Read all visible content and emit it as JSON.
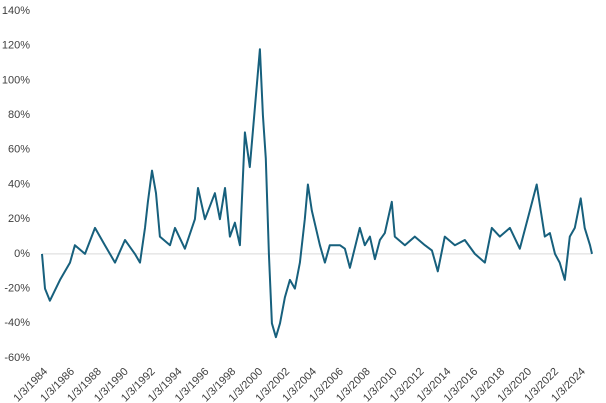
{
  "chart_data": {
    "type": "line",
    "x": [
      1984.0,
      1984.22,
      1984.59,
      1985.34,
      1986.08,
      1986.45,
      1987.2,
      1987.94,
      1988.68,
      1989.43,
      1990.17,
      1990.91,
      1991.29,
      1991.66,
      1991.88,
      1992.18,
      1992.48,
      1992.77,
      1993.52,
      1993.89,
      1994.63,
      1995.37,
      1995.6,
      1996.12,
      1996.86,
      1997.23,
      1997.61,
      1997.98,
      1998.35,
      1998.72,
      1999.09,
      1999.46,
      1999.84,
      2000.21,
      2000.43,
      2000.65,
      2000.88,
      2001.1,
      2001.4,
      2001.7,
      2002.07,
      2002.44,
      2002.81,
      2003.18,
      2003.55,
      2003.78,
      2004.07,
      2004.67,
      2005.04,
      2005.41,
      2006.16,
      2006.53,
      2006.9,
      2007.64,
      2008.01,
      2008.39,
      2008.76,
      2009.13,
      2009.5,
      2010.02,
      2010.24,
      2010.99,
      2011.73,
      2012.48,
      2013.0,
      2013.44,
      2013.96,
      2014.71,
      2015.45,
      2016.2,
      2016.94,
      2017.46,
      2018.05,
      2018.8,
      2019.54,
      2020.29,
      2020.8,
      2021.4,
      2021.78,
      2022.16,
      2022.51,
      2022.89,
      2023.26,
      2023.63,
      2024.07,
      2024.37,
      2024.76,
      2024.91
    ],
    "series": [
      {
        "color": "#17607d",
        "values": [
          0,
          -20,
          -27,
          -15,
          -5,
          5,
          0,
          15,
          5,
          -5,
          8,
          0,
          -5,
          15,
          30,
          48,
          35,
          10,
          5,
          15,
          3,
          20,
          38,
          20,
          35,
          20,
          38,
          10,
          18,
          5,
          70,
          50,
          85,
          118,
          80,
          55,
          0,
          -40,
          -48,
          -40,
          -25,
          -15,
          -20,
          -5,
          20,
          40,
          25,
          5,
          -5,
          5,
          5,
          3,
          -8,
          15,
          5,
          10,
          -3,
          8,
          12,
          30,
          10,
          5,
          10,
          5,
          2,
          -10,
          10,
          5,
          8,
          0,
          -5,
          15,
          10,
          15,
          3,
          25,
          40,
          10,
          12,
          0,
          -5,
          -15,
          10,
          15,
          32,
          15,
          5,
          0
        ]
      }
    ],
    "xlim": [
      1984.0,
      2024.91
    ],
    "xticks": [
      {
        "value": 1984,
        "label": "1/3/1984"
      },
      {
        "value": 1986,
        "label": "1/3/1986"
      },
      {
        "value": 1988,
        "label": "1/3/1988"
      },
      {
        "value": 1990,
        "label": "1/3/1990"
      },
      {
        "value": 1992,
        "label": "1/3/1992"
      },
      {
        "value": 1994,
        "label": "1/3/1994"
      },
      {
        "value": 1996,
        "label": "1/3/1996"
      },
      {
        "value": 1998,
        "label": "1/3/1998"
      },
      {
        "value": 2000,
        "label": "1/3/2000"
      },
      {
        "value": 2002,
        "label": "1/3/2002"
      },
      {
        "value": 2004,
        "label": "1/3/2004"
      },
      {
        "value": 2006,
        "label": "1/3/2006"
      },
      {
        "value": 2008,
        "label": "1/3/2008"
      },
      {
        "value": 2010,
        "label": "1/3/2010"
      },
      {
        "value": 2012,
        "label": "1/3/2012"
      },
      {
        "value": 2014,
        "label": "1/3/2014"
      },
      {
        "value": 2016,
        "label": "1/3/2016"
      },
      {
        "value": 2018,
        "label": "1/3/2018"
      },
      {
        "value": 2020,
        "label": "1/3/2020"
      },
      {
        "value": 2022,
        "label": "1/3/2022"
      },
      {
        "value": 2024,
        "label": "1/3/2024"
      }
    ],
    "ylim": [
      -60,
      140
    ],
    "yticks": [
      {
        "value": -60,
        "label": "-60%"
      },
      {
        "value": -40,
        "label": "-40%"
      },
      {
        "value": -20,
        "label": "-20%"
      },
      {
        "value": 0,
        "label": "0%"
      },
      {
        "value": 20,
        "label": "20%"
      },
      {
        "value": 40,
        "label": "40%"
      },
      {
        "value": 60,
        "label": "60%"
      },
      {
        "value": 80,
        "label": "80%"
      },
      {
        "value": 100,
        "label": "100%"
      },
      {
        "value": 120,
        "label": "120%"
      },
      {
        "value": 140,
        "label": "140%"
      }
    ],
    "zero_line": true
  }
}
